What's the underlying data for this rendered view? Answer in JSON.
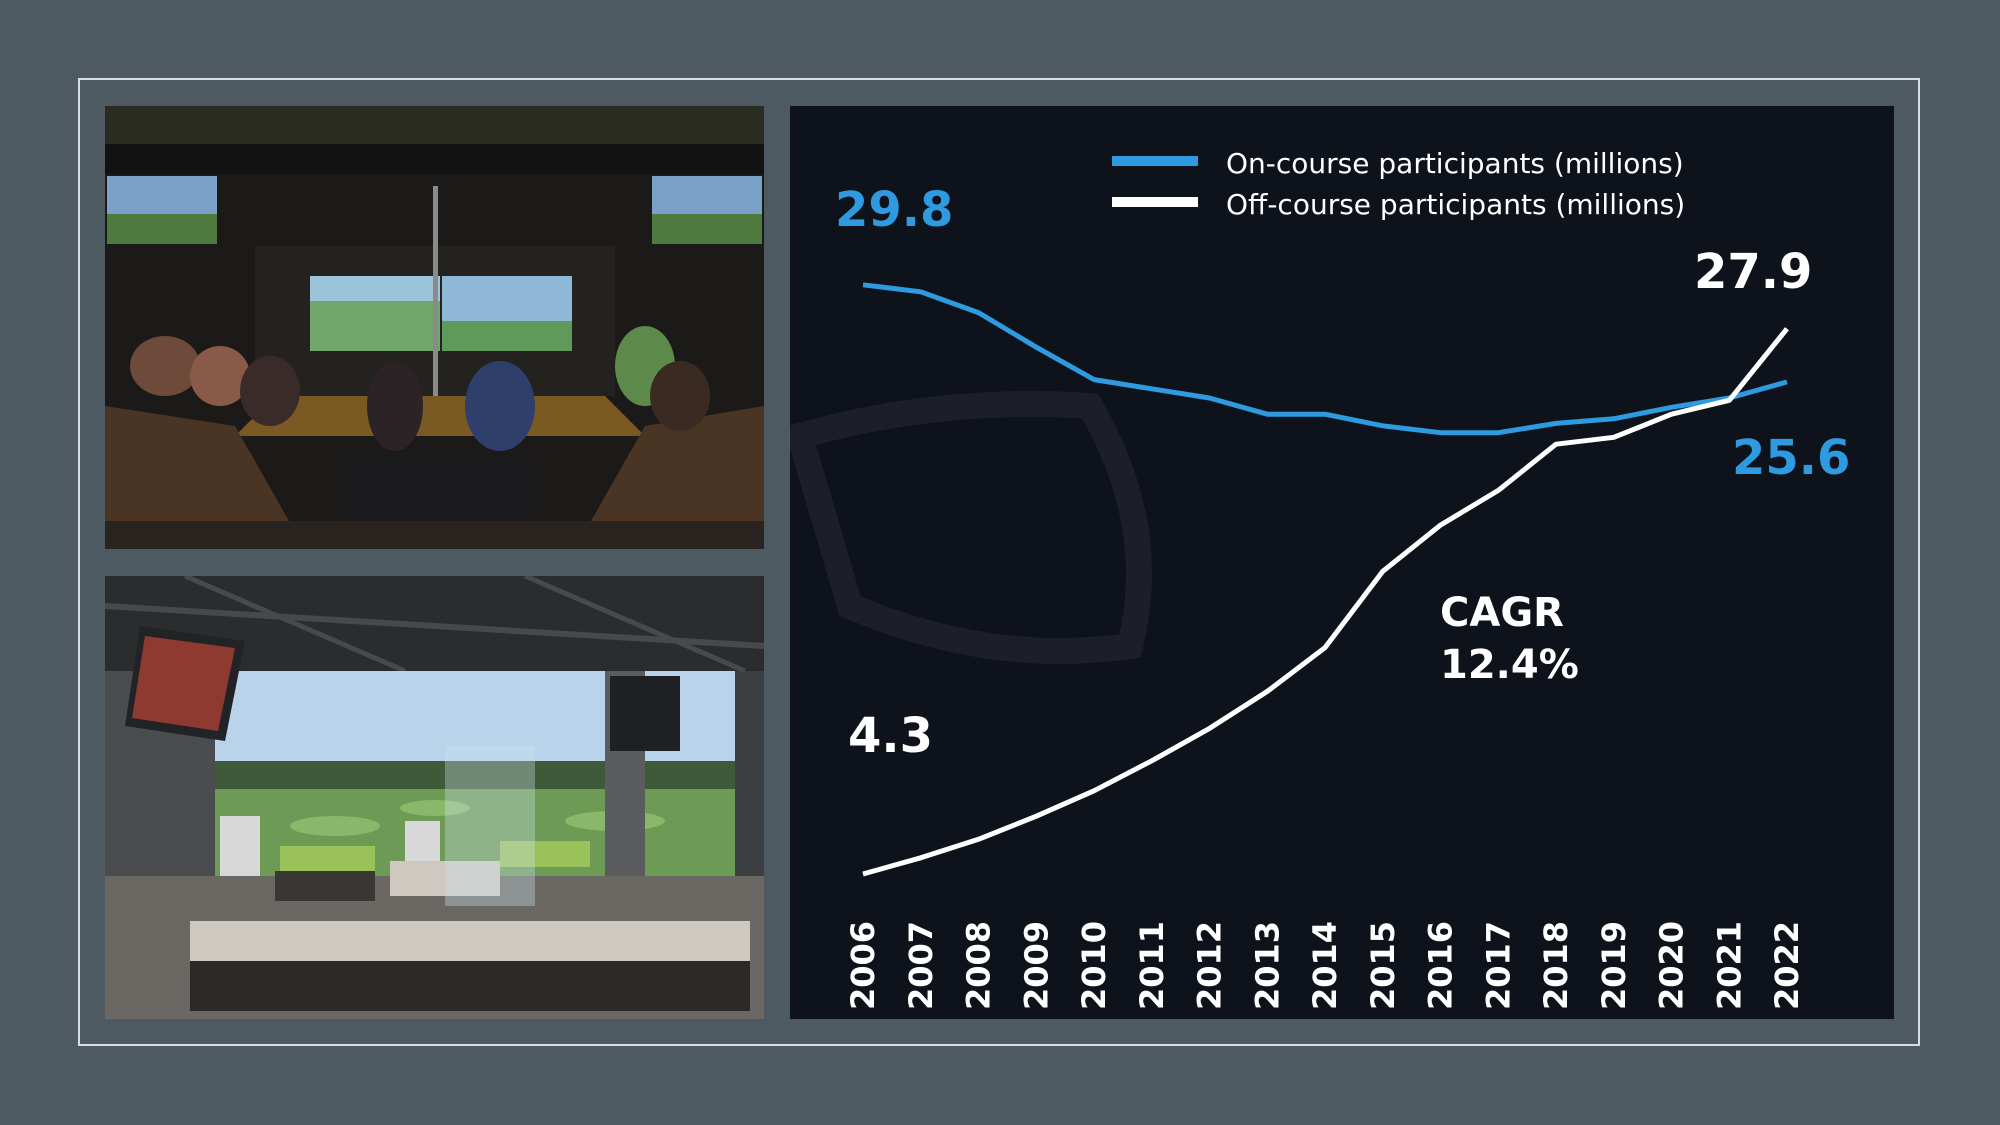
{
  "colors": {
    "background": "#4d5a61",
    "panel": "#0e121b",
    "on_course": "#2e9be0",
    "off_course": "#ffffff"
  },
  "images": {
    "top": "indoor golf simulator lounge with guests watching screens",
    "bottom": "open-air hitting bay overlooking driving range"
  },
  "chart_data": {
    "type": "line",
    "x": [
      "2006",
      "2007",
      "2008",
      "2009",
      "2010",
      "2011",
      "2012",
      "2013",
      "2014",
      "2015",
      "2016",
      "2017",
      "2018",
      "2019",
      "2020",
      "2021",
      "2022"
    ],
    "ylim": [
      3,
      32
    ],
    "series": [
      {
        "name": "On-course participants (millions)",
        "color": "#2e9be0",
        "values": [
          29.8,
          29.5,
          28.6,
          27.1,
          25.7,
          25.3,
          24.9,
          24.2,
          24.2,
          23.7,
          23.4,
          23.4,
          23.8,
          24.0,
          24.5,
          24.9,
          25.6
        ]
      },
      {
        "name": "Off-course participants (millions)",
        "color": "#ffffff",
        "values": [
          4.3,
          5.0,
          5.8,
          6.8,
          7.9,
          9.2,
          10.6,
          12.2,
          14.1,
          17.4,
          19.4,
          20.9,
          22.9,
          23.2,
          24.2,
          24.8,
          27.9
        ]
      }
    ],
    "data_labels": {
      "on_course_start": "29.8",
      "on_course_end": "25.6",
      "off_course_start": "4.3",
      "off_course_end": "27.9"
    },
    "annotation": {
      "line1": "CAGR",
      "line2": "12.4%"
    },
    "legend": {
      "placement": "top-right",
      "items": [
        "On-course participants (millions)",
        "Off-course participants (millions)"
      ]
    },
    "grid": false
  }
}
